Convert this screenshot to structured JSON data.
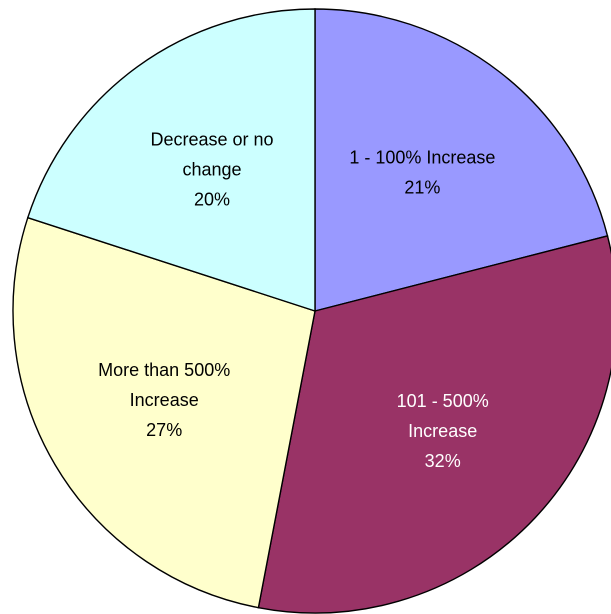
{
  "chart_data": {
    "type": "pie",
    "start_angle_deg": 0,
    "direction": "clockwise",
    "slices": [
      {
        "lines": [
          "1 - 100% Increase",
          "21%"
        ],
        "value": 21,
        "color": "#9999ff",
        "label_color": "#000000"
      },
      {
        "lines": [
          "101 - 500%",
          "Increase",
          "32%"
        ],
        "value": 32,
        "color": "#993366",
        "label_color": "#ffffff"
      },
      {
        "lines": [
          "More than 500%",
          "Increase",
          "27%"
        ],
        "value": 27,
        "color": "#ffffcc",
        "label_color": "#000000"
      },
      {
        "lines": [
          "Decrease or no",
          "change",
          "20%"
        ],
        "value": 20,
        "color": "#ccffff",
        "label_color": "#000000"
      }
    ]
  }
}
